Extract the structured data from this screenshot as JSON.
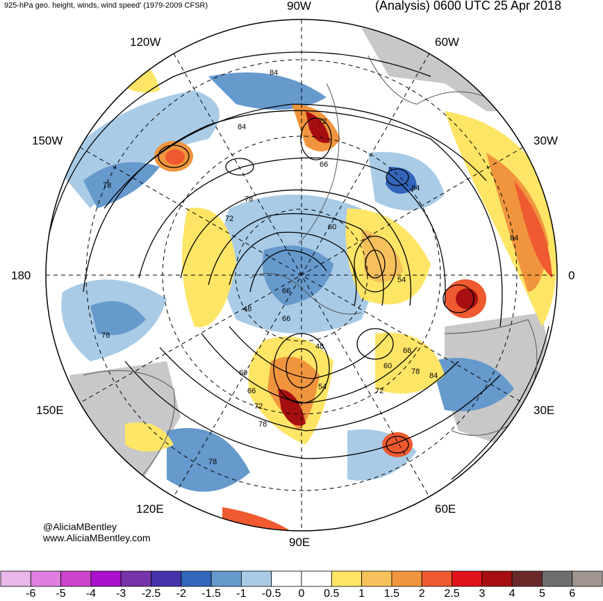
{
  "header": {
    "left_title": "925-hPa geo. height, winds, wind speed' (1979-2009 CFSR)",
    "right_title": "(Analysis) 0600 UTC 25 Apr 2018"
  },
  "longitude_labels": {
    "lon_90w": "90W",
    "lon_120w": "120W",
    "lon_60w": "60W",
    "lon_150w": "150W",
    "lon_30w": "30W",
    "lon_180": "180",
    "lon_0": "0",
    "lon_150e": "150E",
    "lon_30e": "30E",
    "lon_120e": "120E",
    "lon_60e": "60E",
    "lon_90e": "90E"
  },
  "contour_labels": [
    "84",
    "84",
    "78",
    "78",
    "72",
    "66",
    "66",
    "60",
    "84",
    "84",
    "78",
    "48",
    "54",
    "72",
    "66",
    "60",
    "66",
    "48",
    "54",
    "60",
    "66",
    "72",
    "78",
    "72",
    "78",
    "84",
    "78",
    "78"
  ],
  "credits": {
    "handle": "@AliciaMBentley",
    "website": "www.AliciaMBentley.com"
  },
  "colorbar": {
    "labels": [
      "-6",
      "-5",
      "-4",
      "-3",
      "-2.5",
      "-2",
      "-1.5",
      "-1",
      "-0.5",
      "0",
      "0.5",
      "1",
      "1.5",
      "2",
      "2.5",
      "3",
      "4",
      "5",
      "6"
    ],
    "colors": [
      "#e9b7e9",
      "#e07fe0",
      "#cc44cc",
      "#aa11cc",
      "#7733aa",
      "#4433aa",
      "#3366bb",
      "#6699cc",
      "#a9cbe6",
      "#ffffff",
      "#ffffff",
      "#ffe566",
      "#f6c05a",
      "#f0953e",
      "#ef5a30",
      "#e0121a",
      "#a60f12",
      "#6b2a2a",
      "#6f6f6f",
      "#a0958f"
    ]
  },
  "map_colors": {
    "land": "#c8c8c8",
    "neg_light": "#a9cbe6",
    "neg_mid": "#6699cc",
    "neg_dark": "#3366bb",
    "pos_light": "#ffe566",
    "pos_mid": "#f6c05a",
    "pos_orange": "#f0953e",
    "pos_red": "#ef5a30",
    "pos_dark": "#a60f12"
  }
}
